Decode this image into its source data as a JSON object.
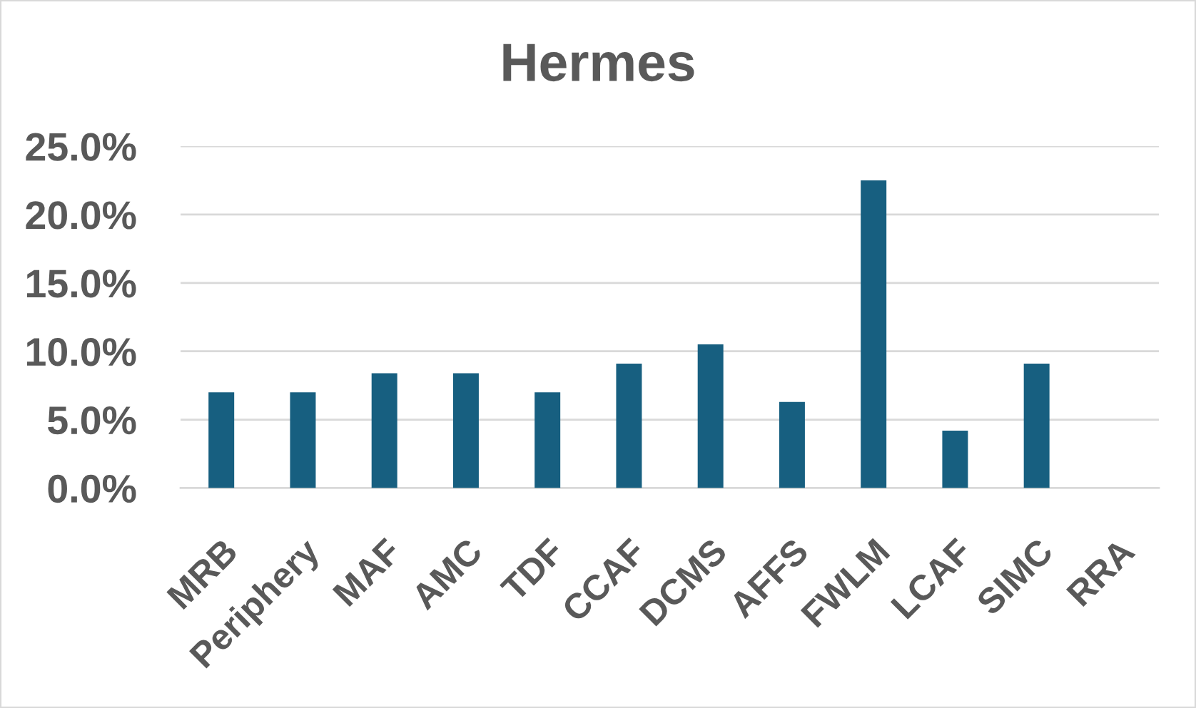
{
  "chart_data": {
    "type": "bar",
    "title": "Hermes",
    "categories": [
      "MRB",
      "Periphery",
      "MAF",
      "AMC",
      "TDF",
      "CCAF",
      "DCMS",
      "AFFS",
      "FWLM",
      "LCAF",
      "SIMC",
      "RRA"
    ],
    "values": [
      7.0,
      7.0,
      8.4,
      8.4,
      7.0,
      9.1,
      10.5,
      6.3,
      22.5,
      4.2,
      9.1,
      0
    ],
    "color": "#175f80",
    "ylim": [
      0,
      25
    ],
    "yticks": [
      {
        "value": 0,
        "label": "0.0%"
      },
      {
        "value": 5,
        "label": "5.0%"
      },
      {
        "value": 10,
        "label": "10.0%"
      },
      {
        "value": 15,
        "label": "15.0%"
      },
      {
        "value": 20,
        "label": "20.0%"
      },
      {
        "value": 25,
        "label": "25.0%"
      }
    ],
    "grid": "y",
    "legend": false
  }
}
